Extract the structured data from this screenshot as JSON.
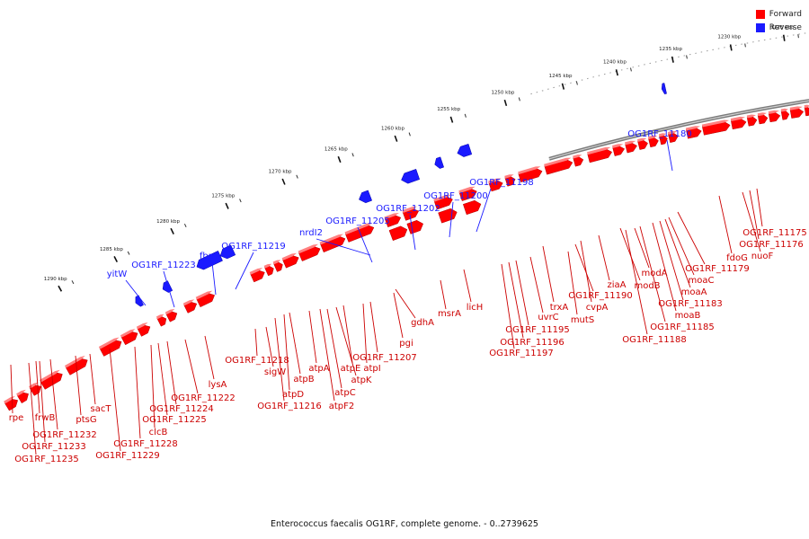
{
  "legend": {
    "forward": {
      "label": "Forward",
      "color": "#ff0000"
    },
    "reverse": {
      "label": "Reverse",
      "color": "#1a1aff"
    }
  },
  "caption": "Enterococcus faecalis OG1RF, complete genome. - 0..2739625",
  "ticks": [
    "1225 kbp",
    "1230 kbp",
    "1235 kbp",
    "1240 kbp",
    "1245 kbp",
    "1250 kbp",
    "1255 kbp",
    "1260 kbp",
    "1265 kbp",
    "1270 kbp",
    "1275 kbp",
    "1280 kbp",
    "1285 kbp",
    "1290 kbp"
  ],
  "reverse_genes": [
    "OG1RF_11180",
    "OG1RF_11198",
    "OG1RF_11200",
    "OG1RF_11202",
    "OG1RF_11205",
    "nrdI2",
    "OG1RF_11219",
    "fbp",
    "OG1RF_11223",
    "yitW"
  ],
  "forward_genes": [
    "OG1RF_11175",
    "OG1RF_11176",
    "nuoF",
    "fdoG",
    "OG1RF_11179",
    "moaC",
    "OG1RF_11183",
    "moaA",
    "moaB",
    "modA",
    "modB",
    "OG1RF_11185",
    "OG1RF_11188",
    "ziaA",
    "trxA",
    "cvpA",
    "OG1RF_11190",
    "mutS",
    "uvrC",
    "OG1RF_11195",
    "OG1RF_11196",
    "OG1RF_11197",
    "licH",
    "msrA",
    "gdhA",
    "pgi",
    "OG1RF_11207",
    "atpI",
    "atpE",
    "atpK",
    "atpA",
    "atpC",
    "atpF2",
    "atpB",
    "atpD",
    "OG1RF_11216",
    "OG1RF_11218",
    "sigW",
    "lysA",
    "OG1RF_11222",
    "OG1RF_11224",
    "OG1RF_11225",
    "clcB",
    "OG1RF_11228",
    "OG1RF_11229",
    "sacT",
    "ptsG",
    "OG1RF_11232",
    "frwB",
    "OG1RF_11233",
    "OG1RF_11235",
    "rpe"
  ]
}
